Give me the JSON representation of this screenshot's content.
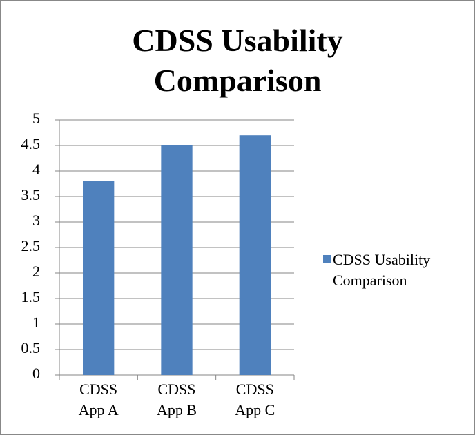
{
  "chart_data": {
    "type": "bar",
    "title": "CDSS Usability Comparison",
    "categories": [
      "CDSS App A",
      "CDSS App B",
      "CDSS App C"
    ],
    "series": [
      {
        "name": "CDSS Usability Comparison",
        "color": "#4f81bd",
        "values": [
          3.8,
          4.5,
          4.7
        ]
      }
    ],
    "ylim": [
      0,
      5
    ],
    "yticks": [
      0,
      0.5,
      1,
      1.5,
      2,
      2.5,
      3,
      3.5,
      4,
      4.5,
      5
    ],
    "grid": true,
    "legend": "right"
  }
}
